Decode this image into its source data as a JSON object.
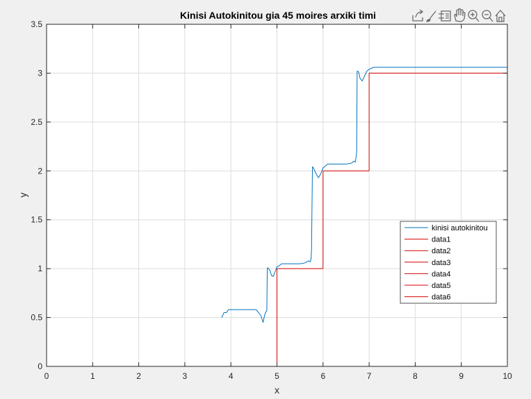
{
  "toolbar": {
    "icons": [
      "export-icon",
      "brush-icon",
      "legend-icon",
      "pan-icon",
      "zoom-in-icon",
      "zoom-out-icon",
      "home-icon"
    ]
  },
  "colors": {
    "figure_bg": "#f0f0f0",
    "axes_bg": "#ffffff",
    "grid": "#dcdcdc",
    "axis": "#262626",
    "series_blue": "#0072bd",
    "series_red": "#d40000"
  },
  "chart_data": {
    "type": "line",
    "title": "Kinisi Autokinitou gia 45 moires arxiki timi",
    "xlabel": "x",
    "ylabel": "y",
    "xlim": [
      0,
      10
    ],
    "ylim": [
      0,
      3.5
    ],
    "xticks": [
      "0",
      "1",
      "2",
      "3",
      "4",
      "5",
      "6",
      "7",
      "8",
      "9",
      "10"
    ],
    "yticks": [
      "0",
      "0.5",
      "1",
      "1.5",
      "2",
      "2.5",
      "3",
      "3.5"
    ],
    "grid": true,
    "legend_position": "right",
    "series": [
      {
        "name": "kinisi autokinitou",
        "color": "#0072bd",
        "x": [
          3.8,
          3.85,
          3.9,
          3.95,
          4.0,
          4.2,
          4.4,
          4.55,
          4.6,
          4.65,
          4.7,
          4.72,
          4.75,
          4.78,
          4.79,
          4.8,
          4.85,
          4.88,
          4.92,
          4.97,
          5.0,
          5.05,
          5.1,
          5.3,
          5.5,
          5.62,
          5.68,
          5.72,
          5.74,
          5.75,
          5.77,
          5.78,
          5.8,
          5.85,
          5.9,
          5.95,
          6.0,
          6.05,
          6.1,
          6.3,
          6.5,
          6.62,
          6.67,
          6.7,
          6.72,
          6.73,
          6.74,
          6.76,
          6.78,
          6.8,
          6.85,
          6.9,
          6.95,
          7.0,
          7.05,
          7.1,
          7.5,
          8.0,
          9.0,
          10.0
        ],
        "y": [
          0.5,
          0.55,
          0.55,
          0.58,
          0.58,
          0.58,
          0.58,
          0.58,
          0.55,
          0.52,
          0.45,
          0.5,
          0.55,
          0.57,
          1.0,
          1.01,
          0.98,
          0.93,
          0.92,
          0.98,
          1.02,
          1.03,
          1.05,
          1.05,
          1.05,
          1.06,
          1.08,
          1.07,
          1.1,
          1.2,
          2.04,
          2.04,
          2.02,
          1.97,
          1.93,
          1.97,
          2.03,
          2.05,
          2.07,
          2.07,
          2.07,
          2.08,
          2.1,
          2.09,
          2.15,
          2.2,
          3.02,
          3.02,
          3.0,
          2.95,
          2.92,
          2.97,
          3.02,
          3.04,
          3.05,
          3.06,
          3.06,
          3.06,
          3.06,
          3.06
        ]
      },
      {
        "name": "data1",
        "color": "#d40000",
        "x": [
          5,
          5
        ],
        "y": [
          0,
          1
        ]
      },
      {
        "name": "data2",
        "color": "#d40000",
        "x": [
          5,
          6
        ],
        "y": [
          1,
          1
        ]
      },
      {
        "name": "data3",
        "color": "#d40000",
        "x": [
          6,
          6
        ],
        "y": [
          1,
          2
        ]
      },
      {
        "name": "data4",
        "color": "#d40000",
        "x": [
          6,
          7
        ],
        "y": [
          2,
          2
        ]
      },
      {
        "name": "data5",
        "color": "#d40000",
        "x": [
          7,
          7
        ],
        "y": [
          2,
          3
        ]
      },
      {
        "name": "data6",
        "color": "#d40000",
        "x": [
          7,
          10
        ],
        "y": [
          3,
          3
        ]
      }
    ]
  }
}
